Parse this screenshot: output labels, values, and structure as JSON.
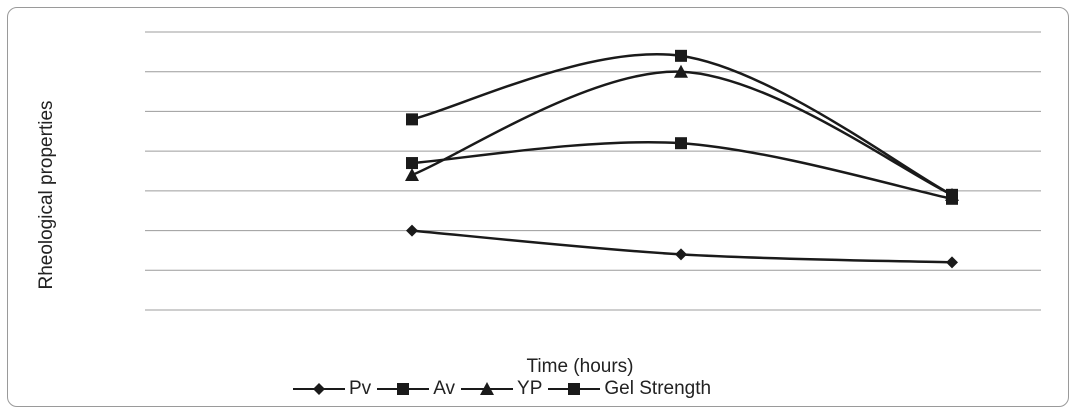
{
  "chart_data": {
    "type": "line",
    "title": "",
    "xlabel": "Time (hours)",
    "ylabel": "Rheological properties",
    "x": [
      1,
      2,
      3
    ],
    "ylim": [
      0,
      7
    ],
    "grid": true,
    "legend_position": "bottom",
    "series": [
      {
        "name": "Pv",
        "marker": "diamond",
        "values": [
          2.0,
          1.4,
          1.2
        ]
      },
      {
        "name": "Av",
        "marker": "square",
        "values": [
          3.7,
          4.2,
          2.8
        ]
      },
      {
        "name": "YP",
        "marker": "triangle",
        "values": [
          3.4,
          6.0,
          2.9
        ]
      },
      {
        "name": "Gel Strength",
        "marker": "square",
        "values": [
          4.8,
          6.4,
          2.9
        ]
      }
    ],
    "colors": {
      "line": "#1a1a1a",
      "grid": "#9c9c9c"
    }
  }
}
